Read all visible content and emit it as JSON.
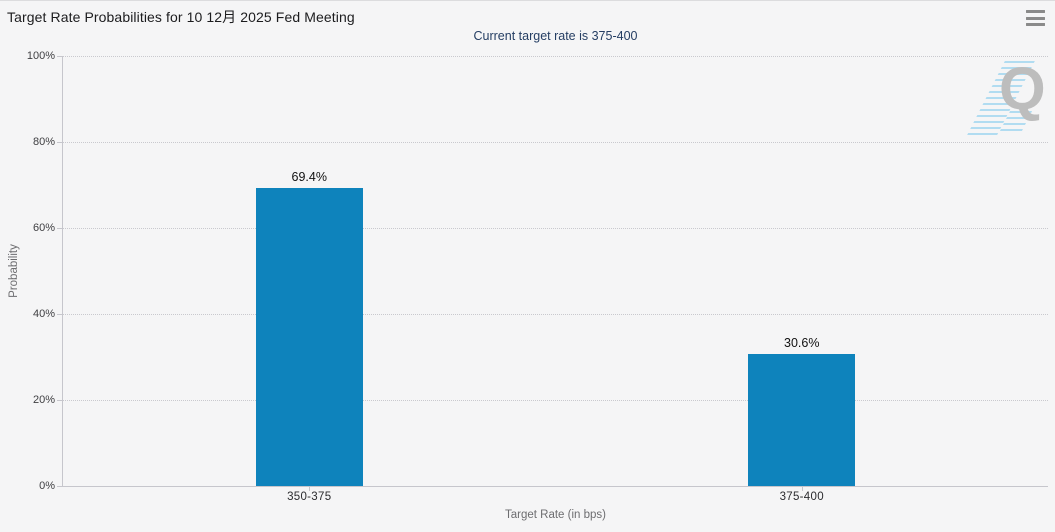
{
  "header": {
    "title": "Target Rate Probabilities for 10 12月 2025 Fed Meeting",
    "subtitle": "Current target rate is 375-400"
  },
  "menu": {
    "icon": "hamburger"
  },
  "watermark": {
    "letter": "Q"
  },
  "chart_data": {
    "type": "bar",
    "title": "Target Rate Probabilities for 10 12月 2025 Fed Meeting",
    "subtitle": "Current target rate is 375-400",
    "categories": [
      "350-375",
      "375-400"
    ],
    "values": [
      69.4,
      30.6
    ],
    "value_labels": [
      "69.4%",
      "30.6%"
    ],
    "xlabel": "Target Rate (in bps)",
    "ylabel": "Probability",
    "ylim": [
      0,
      100
    ],
    "ytick_step": 20,
    "ytick_labels": [
      "0%",
      "20%",
      "40%",
      "60%",
      "80%",
      "100%"
    ],
    "grid": "dotted-horizontal",
    "legend": "none",
    "bar_color": "#0e83bc"
  },
  "colors": {
    "background": "#f5f5f6",
    "bar": "#0e83bc",
    "title_text": "#1c1c1e",
    "subtitle_text": "#253e63",
    "axis_line": "#c6c6cc",
    "grid_dot": "#c9c9ce",
    "axis_title_text": "#6d6d70",
    "tick_label_text": "#3f3f42",
    "watermark_gray": "#bdbdbd",
    "watermark_blue": "#a5d8f0",
    "menu_icon": "#8a8a8a"
  }
}
